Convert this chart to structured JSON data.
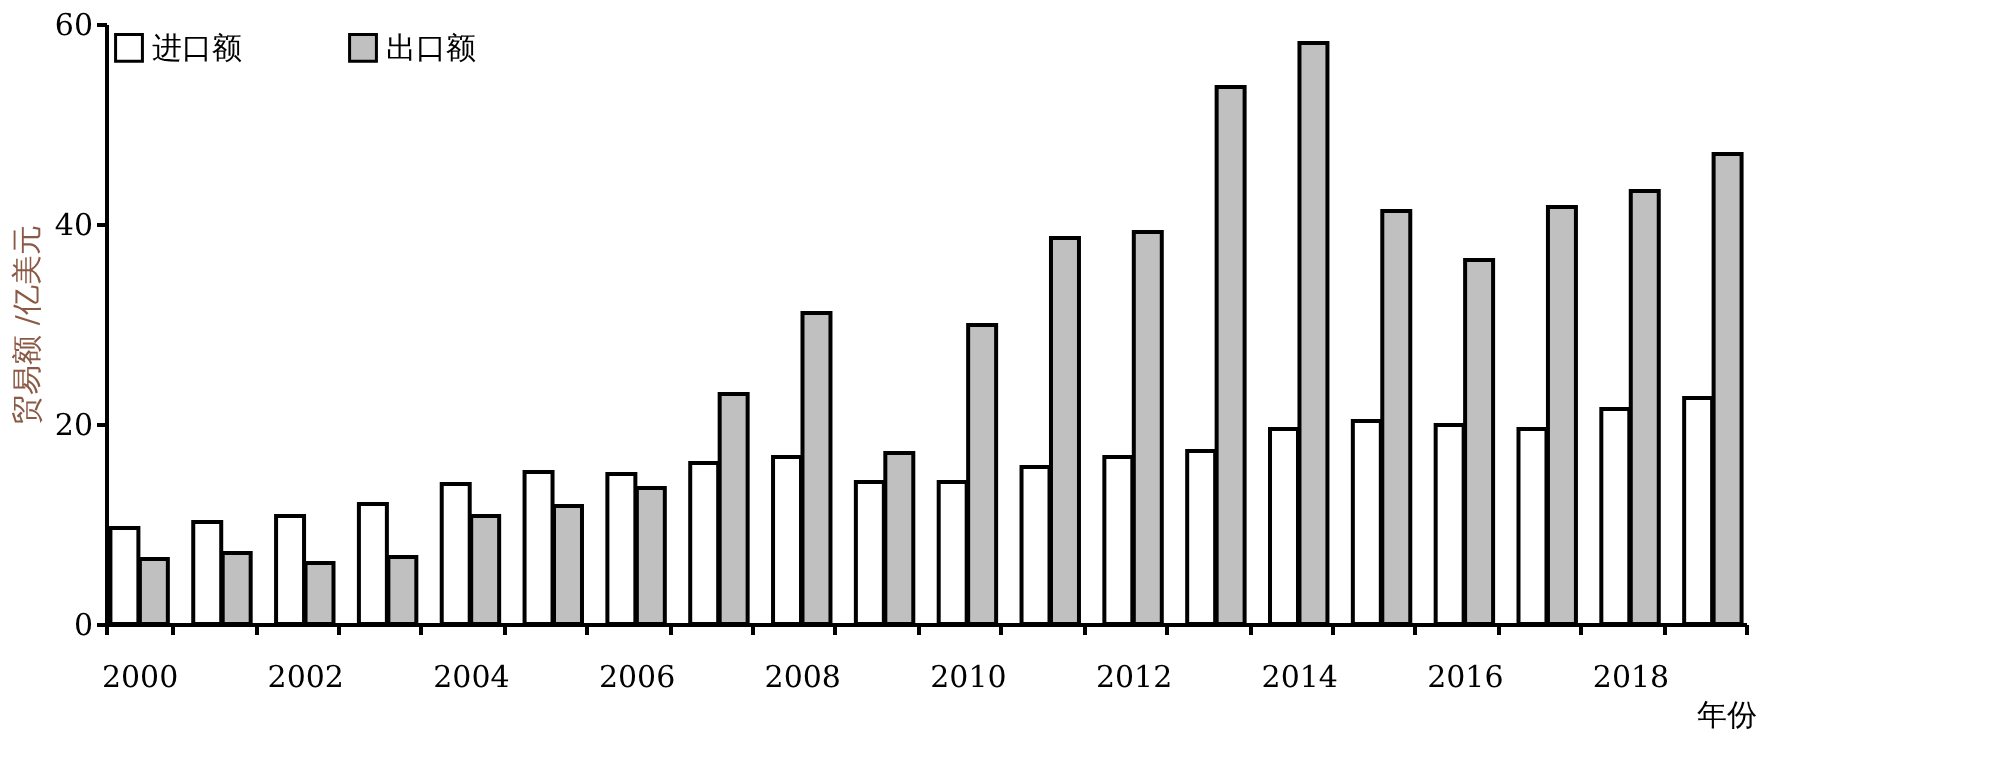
{
  "chart_data": {
    "type": "bar",
    "ylabel": "贸易额 /亿美元",
    "xlabel": "年份",
    "categories": [
      "2000",
      null,
      "2002",
      null,
      "2004",
      null,
      "2006",
      null,
      "2008",
      null,
      "2010",
      null,
      "2012",
      null,
      "2014",
      null,
      "2016",
      null,
      "2018",
      null
    ],
    "series": [
      {
        "name": "进口额",
        "color": "#ffffff",
        "values": [
          9.6,
          10.2,
          10.8,
          12.0,
          14.0,
          15.2,
          15.0,
          16.1,
          16.7,
          14.2,
          14.2,
          15.7,
          16.7,
          17.3,
          19.5,
          20.3,
          19.9,
          19.5,
          21.5,
          22.6
        ]
      },
      {
        "name": "出口额",
        "color": "#c0c0c0",
        "values": [
          6.5,
          7.1,
          6.1,
          6.7,
          10.8,
          11.8,
          13.6,
          23.0,
          31.1,
          17.1,
          29.9,
          38.6,
          39.2,
          53.7,
          58.1,
          41.3,
          36.4,
          41.7,
          43.3,
          47.0
        ]
      }
    ],
    "ylim": [
      0,
      60
    ],
    "yticks": [
      0,
      20,
      40,
      60
    ],
    "grid": false,
    "legend": "top left"
  }
}
